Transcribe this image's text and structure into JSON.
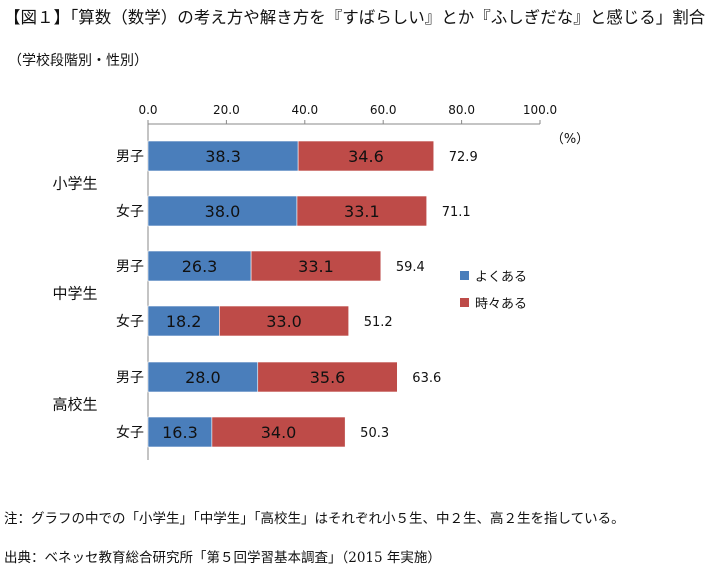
{
  "title": "【図１】「算数（数学）の考え方や解き方を『すばらしい』とか『ふしぎだな』と感じる」割合",
  "subtitle": "（学校段階別・性別）",
  "note": "注：グラフの中での「小学生」「中学生」「高校生」はそれぞれ小５生、中２生、高２生を指している。",
  "source": "出典：ベネッセ教育総合研究所「第５回学習基本調査」（2015 年実施）",
  "chart_data": {
    "type": "bar",
    "orientation": "horizontal",
    "stacked": true,
    "unit_label": "（%）",
    "xlim": [
      0,
      100
    ],
    "x_ticks": [
      "0.0",
      "20.0",
      "40.0",
      "60.0",
      "80.0",
      "100.0"
    ],
    "groups": [
      "小学生",
      "中学生",
      "高校生"
    ],
    "categories": [
      "男子",
      "女子",
      "男子",
      "女子",
      "男子",
      "女子"
    ],
    "series": [
      {
        "name": "よくある",
        "color": "#4a7ebb",
        "values": [
          38.3,
          38.0,
          26.3,
          18.2,
          28.0,
          16.3
        ],
        "labels": [
          "38.3",
          "38.0",
          "26.3",
          "18.2",
          "28.0",
          "16.3"
        ]
      },
      {
        "name": "時々ある",
        "color": "#be4b48",
        "values": [
          34.6,
          33.1,
          33.1,
          33.0,
          35.6,
          34.0
        ],
        "labels": [
          "34.6",
          "33.1",
          "33.1",
          "33.0",
          "35.6",
          "34.0"
        ]
      }
    ],
    "totals": [
      "72.9",
      "71.1",
      "59.4",
      "51.2",
      "63.6",
      "50.3"
    ],
    "legend_position": "right"
  }
}
